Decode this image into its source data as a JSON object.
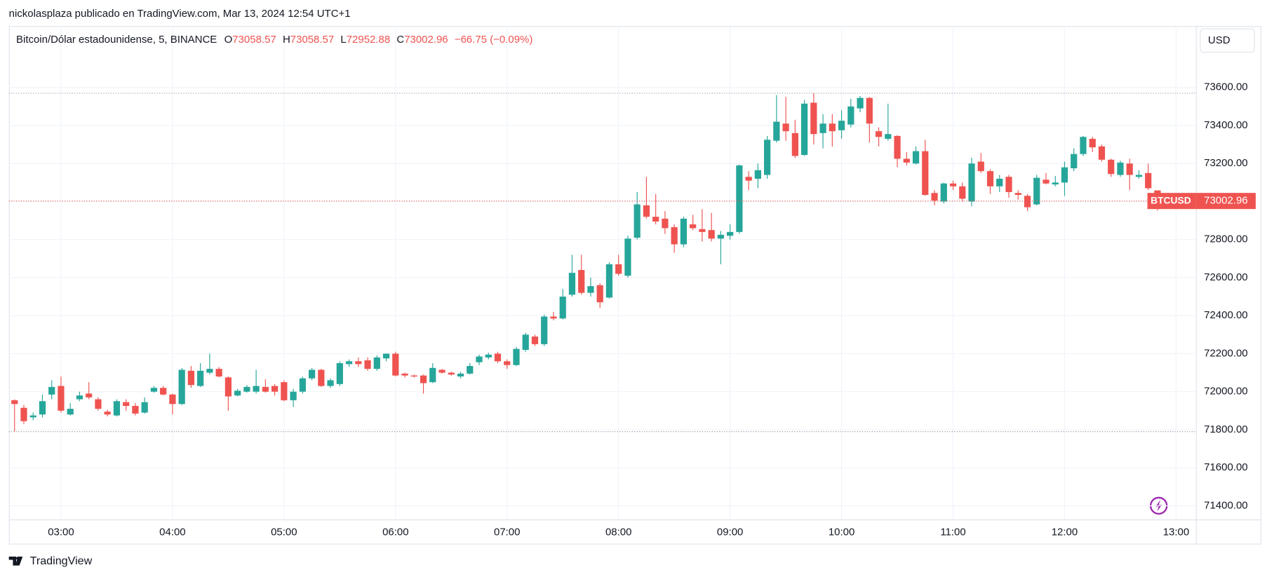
{
  "header": {
    "text": "nickolasplaza publicado en TradingView.com, Mar 13, 2024 12:54 UTC+1"
  },
  "footer": {
    "brand": "TradingView"
  },
  "chart_data": {
    "type": "candlestick",
    "title": "Bitcoin/Dólar estadounidense, 5, BINANCE",
    "legend_letters": [
      "O",
      "H",
      "L",
      "C"
    ],
    "change_label": "−66.75 (−0.09%)",
    "currency": "USD",
    "symbol": "BTCUSD",
    "up_color": "#26a69a",
    "down_color": "#ef5350",
    "grid": true,
    "xticks": [
      "03:00",
      "04:00",
      "05:00",
      "06:00",
      "07:00",
      "08:00",
      "09:00",
      "10:00",
      "11:00",
      "12:00",
      "13:00"
    ],
    "ylim": [
      71328,
      73923
    ],
    "yticks": [
      {
        "value": 71400,
        "label": "71400.00"
      },
      {
        "value": 71600,
        "label": "71600.00"
      },
      {
        "value": 71800,
        "label": "71800.00"
      },
      {
        "value": 72000,
        "label": "72000.00"
      },
      {
        "value": 72200,
        "label": "72200.00"
      },
      {
        "value": 72400,
        "label": "72400.00"
      },
      {
        "value": 72600,
        "label": "72600.00"
      },
      {
        "value": 72800,
        "label": "72800.00"
      },
      {
        "value": 73000,
        "label": "73000.00"
      },
      {
        "value": 73200,
        "label": "73200.00"
      },
      {
        "value": 73400,
        "label": "73400.00"
      },
      {
        "value": 73600,
        "label": "73600.00"
      }
    ],
    "open": [
      71955,
      71915,
      71865,
      71880,
      71985,
      72030,
      71880,
      71960,
      71990,
      71960,
      71895,
      71875,
      71945,
      71925,
      71890,
      72000,
      72020,
      71985,
      71935,
      72110,
      72030,
      72100,
      72120,
      72075,
      71980,
      72000,
      72000,
      72025,
      72030,
      72050,
      71955,
      72000,
      72070,
      72115,
      72030,
      72040,
      72145,
      72160,
      72165,
      72120,
      72175,
      72200,
      72095,
      72085,
      72085,
      72050,
      72115,
      72100,
      72080,
      72095,
      72155,
      72180,
      72200,
      72160,
      72140,
      72220,
      72290,
      72250,
      72395,
      72385,
      72510,
      72640,
      72520,
      72560,
      72495,
      72670,
      72610,
      72810,
      72980,
      72920,
      72910,
      72865,
      72775,
      72880,
      72855,
      72850,
      72805,
      72820,
      72840,
      73130,
      73120,
      73140,
      73320,
      73410,
      73360,
      73245,
      73520,
      73360,
      73410,
      73375,
      73405,
      73490,
      73545,
      73370,
      73330,
      73345,
      73225,
      73200,
      73265,
      73045,
      73000,
      73095,
      73080,
      73000,
      73210,
      73160,
      73080,
      73130,
      73045,
      73030,
      72985,
      73115,
      73090,
      73100,
      73175,
      73250,
      73330,
      73290,
      73220,
      73140,
      73200,
      73130,
      73150,
      73058.57
    ],
    "high": [
      71960,
      71930,
      71890,
      71985,
      72060,
      72080,
      71940,
      72000,
      72050,
      71970,
      71905,
      71960,
      71960,
      71940,
      71970,
      72030,
      72030,
      71990,
      72125,
      72135,
      72150,
      72200,
      72130,
      72080,
      72015,
      72035,
      72115,
      72065,
      72040,
      72060,
      72015,
      72080,
      72125,
      72120,
      72070,
      72160,
      72170,
      72180,
      72180,
      72190,
      72200,
      72210,
      72100,
      72090,
      72090,
      72150,
      72120,
      72105,
      72105,
      72150,
      72195,
      72205,
      72210,
      72170,
      72235,
      72310,
      72300,
      72405,
      72420,
      72540,
      72720,
      72720,
      72600,
      72570,
      72680,
      72720,
      72820,
      73050,
      73130,
      73040,
      72950,
      72880,
      72920,
      72930,
      72960,
      72940,
      72845,
      72880,
      73195,
      73160,
      73200,
      73345,
      73560,
      73550,
      73430,
      73535,
      73570,
      73460,
      73460,
      73480,
      73540,
      73555,
      73550,
      73390,
      73515,
      73350,
      73260,
      73290,
      73325,
      73060,
      73100,
      73110,
      73100,
      73230,
      73255,
      73170,
      73140,
      73140,
      73060,
      73040,
      73140,
      73150,
      73135,
      73210,
      73280,
      73345,
      73340,
      73300,
      73225,
      73215,
      73225,
      73165,
      73200,
      73058.57
    ],
    "low": [
      71790,
      71830,
      71850,
      71865,
      71960,
      71890,
      71875,
      71950,
      71960,
      71900,
      71870,
      71870,
      71900,
      71875,
      71885,
      71995,
      71980,
      71880,
      71930,
      72020,
      72025,
      72090,
      72075,
      71900,
      71975,
      71995,
      71990,
      71995,
      71980,
      71950,
      71920,
      71990,
      72060,
      72025,
      72020,
      72030,
      72130,
      72130,
      72110,
      72110,
      72160,
      72080,
      72075,
      72075,
      71990,
      72045,
      72095,
      72085,
      72070,
      72090,
      72140,
      72170,
      72150,
      72120,
      72135,
      72210,
      72240,
      72240,
      72375,
      72380,
      72500,
      72510,
      72500,
      72440,
      72490,
      72610,
      72600,
      72800,
      72910,
      72880,
      72830,
      72730,
      72760,
      72850,
      72790,
      72790,
      72670,
      72800,
      72830,
      73060,
      73070,
      73120,
      73310,
      73320,
      73230,
      73240,
      73300,
      73280,
      73290,
      73330,
      73390,
      73470,
      73310,
      73290,
      73320,
      73180,
      73190,
      73195,
      73030,
      72980,
      72990,
      73060,
      73000,
      72975,
      73150,
      73040,
      73050,
      73020,
      73010,
      72950,
      72980,
      73090,
      73080,
      73030,
      73160,
      73240,
      73260,
      73210,
      73130,
      73130,
      73060,
      73120,
      73060,
      72952.88
    ],
    "close": [
      71935,
      71845,
      71875,
      71950,
      72025,
      71900,
      71910,
      71980,
      71970,
      71910,
      71880,
      71950,
      71925,
      71885,
      71945,
      72020,
      71985,
      71935,
      72115,
      72035,
      72110,
      72120,
      72080,
      71975,
      72005,
      72025,
      72030,
      72000,
      72000,
      71955,
      72000,
      72070,
      72115,
      72030,
      72060,
      72150,
      72160,
      72145,
      72120,
      72180,
      72200,
      72085,
      72085,
      72080,
      72045,
      72125,
      72100,
      72090,
      72095,
      72135,
      72185,
      72195,
      72160,
      72140,
      72225,
      72300,
      72250,
      72395,
      72385,
      72500,
      72625,
      72520,
      72555,
      72470,
      72670,
      72620,
      72805,
      72985,
      72920,
      72895,
      72860,
      72775,
      72910,
      72860,
      72840,
      72805,
      72825,
      72840,
      73190,
      73110,
      73165,
      73325,
      73420,
      73370,
      73240,
      73515,
      73355,
      73410,
      73370,
      73425,
      73500,
      73545,
      73410,
      73340,
      73355,
      73225,
      73205,
      73265,
      73035,
      73005,
      73095,
      73080,
      73015,
      73200,
      73160,
      73080,
      73120,
      73050,
      73035,
      72970,
      73125,
      73095,
      73100,
      73180,
      73250,
      73340,
      73285,
      73220,
      73145,
      73205,
      73140,
      73140,
      73070,
      73002.96
    ]
  }
}
